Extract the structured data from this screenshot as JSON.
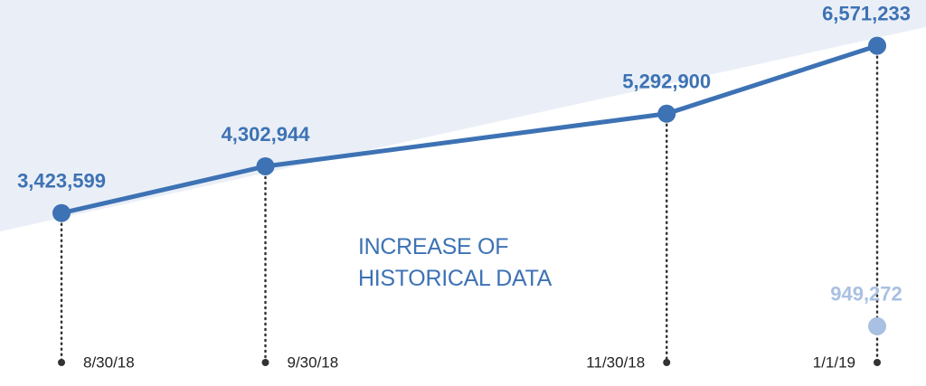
{
  "chart_data": {
    "type": "line",
    "title": "INCREASE OF HISTORICAL DATA",
    "x": [
      "8/30/18",
      "9/30/18",
      "11/30/18",
      "1/1/19"
    ],
    "series": [
      {
        "color": "#3d72b4",
        "values": [
          3423599,
          4302944,
          5292900,
          6571233
        ],
        "value_labels": [
          "3,423,599",
          "4,302,944",
          "5,292,900",
          "6,571,233"
        ]
      },
      {
        "color": "#a9c0e2",
        "axis": "y2",
        "values": [
          null,
          null,
          null,
          949272
        ],
        "value_labels": [
          null,
          null,
          null,
          "949,272"
        ]
      }
    ],
    "ylim": [
      0,
      7500000
    ],
    "y2lim": [
      0,
      5500000
    ],
    "grid": false
  }
}
